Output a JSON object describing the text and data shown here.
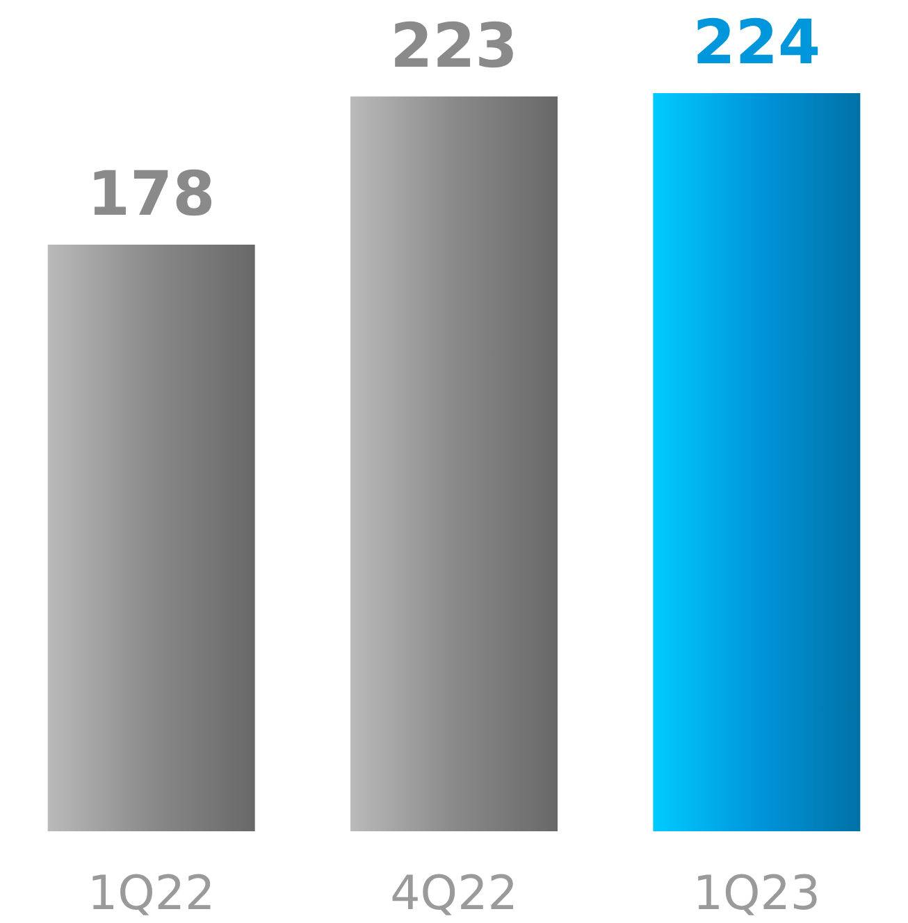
{
  "chart_data": {
    "type": "bar",
    "categories": [
      "1Q22",
      "4Q22",
      "1Q23"
    ],
    "values": [
      178,
      223,
      224
    ],
    "colors": [
      "#8a8a8a",
      "#8a8a8a",
      "#0096dc"
    ],
    "data_labels": true
  }
}
